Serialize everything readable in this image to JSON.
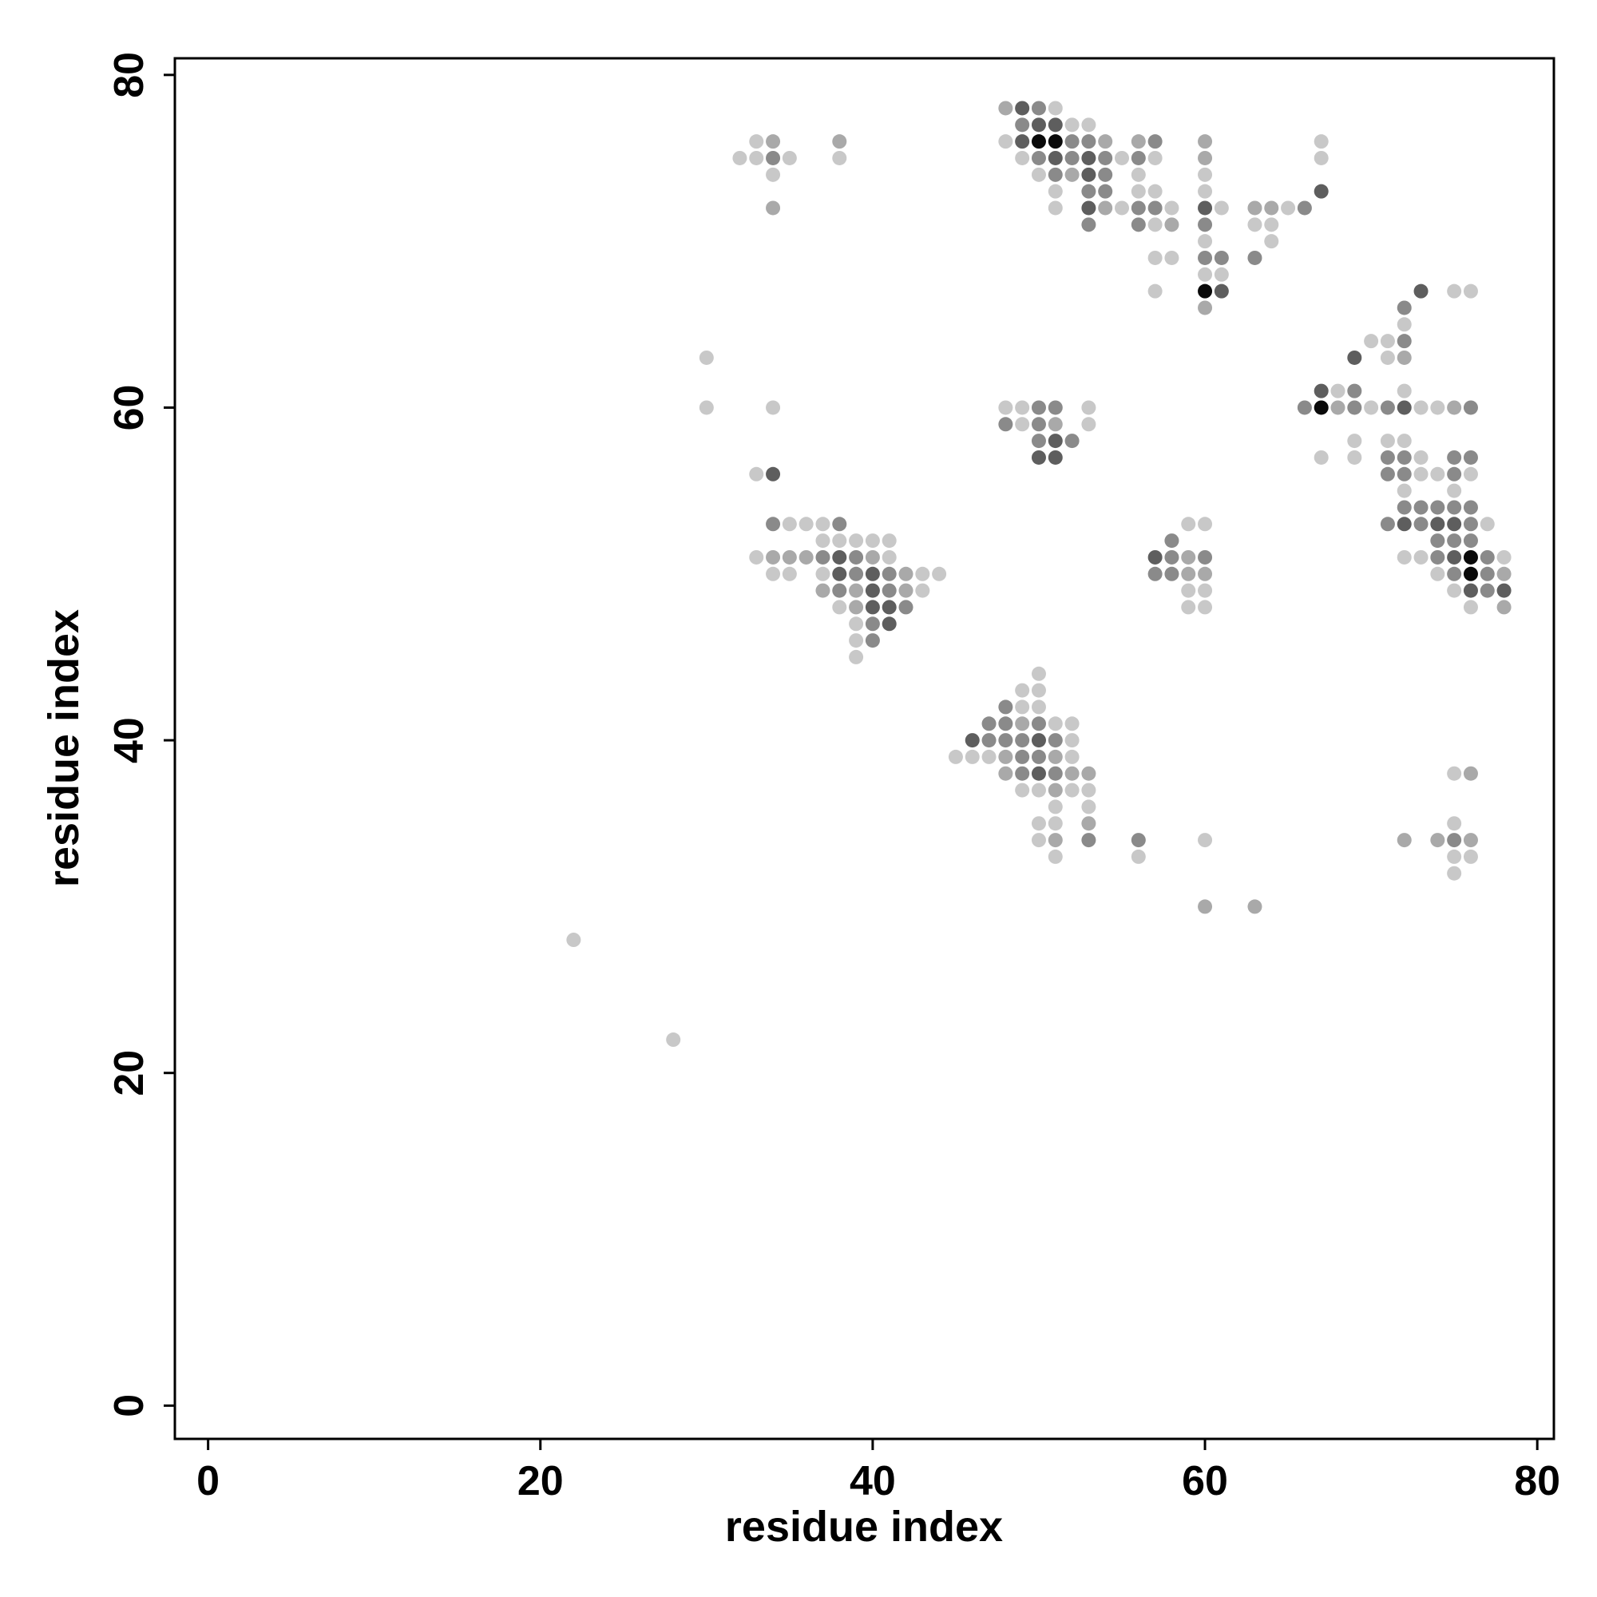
{
  "chart_data": {
    "type": "scatter",
    "x_label": "residue index",
    "y_label": "residue index",
    "xlim": [
      -2,
      81
    ],
    "ylim": [
      -2,
      81
    ],
    "xticks": [
      0,
      20,
      40,
      60,
      80
    ],
    "yticks": [
      0,
      20,
      40,
      60,
      80
    ],
    "series": [
      {
        "color": "#c8c8c8",
        "x": [
          51,
          52,
          53,
          33,
          48,
          67,
          32,
          33,
          35,
          38,
          49,
          55,
          57,
          67,
          34,
          50,
          56,
          60,
          51,
          56,
          57,
          60,
          51,
          55,
          58,
          61,
          65,
          57,
          63,
          64,
          60,
          64,
          57,
          58,
          60,
          61,
          57,
          75,
          76,
          72,
          70,
          71,
          30,
          71,
          68,
          72,
          30,
          34,
          48,
          49,
          53,
          70,
          73,
          74,
          49,
          53,
          69,
          71,
          72,
          67,
          69,
          73,
          33,
          73,
          74,
          76,
          72,
          75,
          35,
          36,
          37,
          59,
          60,
          77,
          37,
          38,
          39,
          40,
          41,
          33,
          41,
          72,
          73,
          78,
          34,
          35,
          37,
          43,
          44,
          74,
          43,
          59,
          60,
          75,
          38,
          59,
          60,
          76,
          39,
          39,
          39,
          50,
          49,
          50,
          49,
          50,
          51,
          52,
          52,
          45,
          46,
          47,
          52,
          75,
          49,
          50,
          52,
          53,
          51,
          53,
          50,
          51,
          75,
          50,
          60,
          51,
          56,
          75,
          76,
          75,
          22,
          28
        ],
        "y": [
          78,
          77,
          77,
          76,
          76,
          76,
          75,
          75,
          75,
          75,
          75,
          75,
          75,
          75,
          74,
          74,
          74,
          74,
          73,
          73,
          73,
          73,
          72,
          72,
          72,
          72,
          72,
          71,
          71,
          71,
          70,
          70,
          69,
          69,
          68,
          68,
          67,
          67,
          67,
          65,
          64,
          64,
          63,
          63,
          61,
          61,
          60,
          60,
          60,
          60,
          60,
          60,
          60,
          60,
          59,
          59,
          58,
          58,
          58,
          57,
          57,
          57,
          56,
          56,
          56,
          56,
          55,
          55,
          53,
          53,
          53,
          53,
          53,
          53,
          52,
          52,
          52,
          52,
          52,
          51,
          51,
          51,
          51,
          51,
          50,
          50,
          50,
          50,
          50,
          50,
          49,
          49,
          49,
          49,
          48,
          48,
          48,
          48,
          47,
          46,
          45,
          44,
          43,
          43,
          42,
          42,
          41,
          41,
          40,
          39,
          39,
          39,
          39,
          38,
          37,
          37,
          37,
          37,
          36,
          36,
          35,
          35,
          35,
          34,
          34,
          33,
          33,
          33,
          33,
          32,
          28,
          22
        ]
      },
      {
        "color": "#a9a9a9",
        "x": [
          48,
          34,
          38,
          54,
          56,
          60,
          60,
          52,
          34,
          54,
          63,
          64,
          58,
          60,
          72,
          68,
          75,
          51,
          34,
          35,
          36,
          40,
          59,
          42,
          59,
          60,
          78,
          37,
          39,
          42,
          39,
          78,
          49,
          48,
          51,
          48,
          52,
          53,
          76,
          51,
          53,
          51,
          72,
          74,
          76,
          60,
          63
        ],
        "y": [
          78,
          76,
          76,
          76,
          76,
          76,
          75,
          74,
          72,
          72,
          72,
          72,
          71,
          66,
          63,
          60,
          60,
          59,
          51,
          51,
          51,
          51,
          51,
          50,
          50,
          50,
          50,
          49,
          49,
          49,
          48,
          48,
          41,
          39,
          39,
          38,
          38,
          38,
          38,
          37,
          35,
          34,
          34,
          34,
          34,
          30,
          30
        ]
      },
      {
        "color": "#8a8a8a",
        "x": [
          50,
          49,
          52,
          53,
          57,
          34,
          50,
          52,
          54,
          56,
          51,
          54,
          53,
          54,
          56,
          57,
          66,
          53,
          56,
          60,
          60,
          61,
          63,
          72,
          72,
          69,
          50,
          51,
          66,
          69,
          71,
          76,
          48,
          50,
          50,
          52,
          71,
          72,
          75,
          76,
          71,
          72,
          75,
          72,
          73,
          74,
          75,
          76,
          34,
          38,
          71,
          73,
          76,
          58,
          74,
          75,
          76,
          37,
          39,
          58,
          60,
          74,
          77,
          39,
          41,
          57,
          58,
          75,
          77,
          38,
          41,
          77,
          42,
          40,
          40,
          48,
          47,
          48,
          50,
          47,
          48,
          49,
          51,
          49,
          50,
          49,
          51,
          53,
          56,
          75
        ],
        "y": [
          78,
          77,
          76,
          76,
          76,
          75,
          75,
          75,
          75,
          75,
          74,
          74,
          73,
          73,
          72,
          72,
          72,
          71,
          71,
          71,
          69,
          69,
          69,
          66,
          64,
          61,
          60,
          60,
          60,
          60,
          60,
          60,
          59,
          59,
          58,
          58,
          57,
          57,
          57,
          57,
          56,
          56,
          56,
          54,
          54,
          54,
          54,
          54,
          53,
          53,
          53,
          53,
          53,
          52,
          52,
          52,
          52,
          51,
          51,
          51,
          51,
          51,
          51,
          50,
          50,
          50,
          50,
          50,
          50,
          49,
          49,
          49,
          48,
          47,
          46,
          42,
          41,
          41,
          41,
          40,
          40,
          40,
          40,
          39,
          39,
          38,
          38,
          34,
          34,
          34
        ]
      },
      {
        "color": "#5e5e5e",
        "x": [
          49,
          50,
          51,
          49,
          51,
          53,
          53,
          67,
          53,
          60,
          61,
          73,
          69,
          67,
          72,
          51,
          50,
          51,
          34,
          72,
          74,
          75,
          38,
          57,
          75,
          38,
          40,
          40,
          76,
          78,
          40,
          41,
          41,
          46,
          50,
          50
        ],
        "y": [
          78,
          77,
          77,
          76,
          75,
          75,
          74,
          73,
          72,
          72,
          67,
          67,
          63,
          61,
          60,
          58,
          57,
          57,
          56,
          53,
          53,
          53,
          51,
          51,
          51,
          50,
          50,
          49,
          49,
          49,
          48,
          48,
          47,
          40,
          40,
          38
        ]
      },
      {
        "color": "#0a0a0a",
        "x": [
          50,
          51,
          60,
          67,
          76,
          76
        ],
        "y": [
          76,
          76,
          67,
          60,
          51,
          50
        ]
      }
    ]
  }
}
